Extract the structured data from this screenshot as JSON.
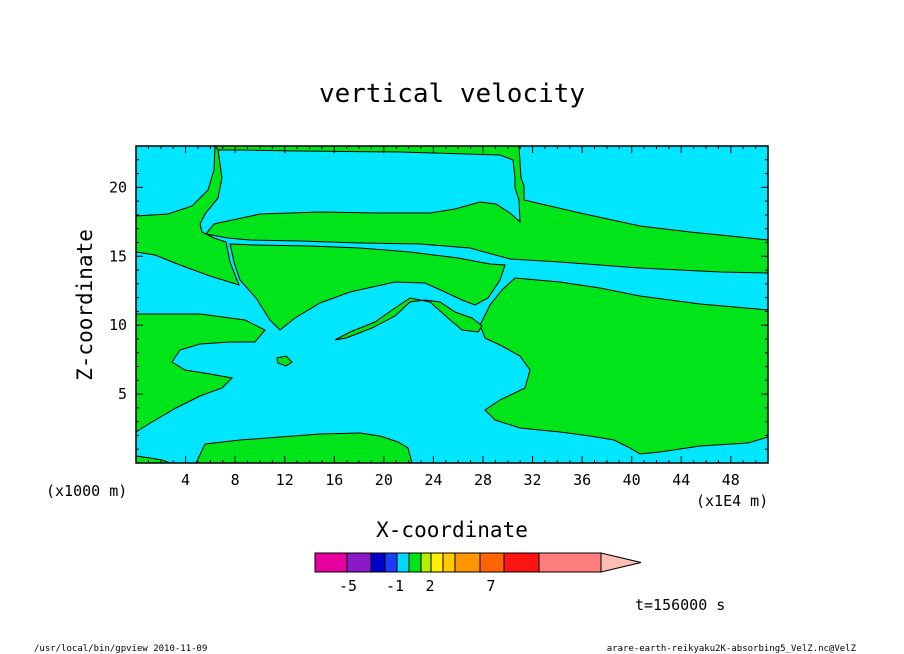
{
  "chart_data": {
    "type": "contour",
    "title": "vertical velocity",
    "xlabel": "X-coordinate",
    "ylabel": "Z-coordinate",
    "x_scale_note": "(x1E4 m)",
    "y_scale_note": "(x1000 m)",
    "x_ticks": [
      "4",
      "8",
      "12",
      "16",
      "20",
      "24",
      "28",
      "32",
      "36",
      "40",
      "44",
      "48"
    ],
    "y_ticks": [
      "5",
      "10",
      "15",
      "20"
    ],
    "xlim": [
      0,
      51
    ],
    "ylim": [
      0,
      23
    ],
    "fill_colors": {
      "positive": "#00e51a",
      "negative": "#00e6ff",
      "contour_line": "#000000"
    },
    "colorbar": {
      "labels": [
        "-5",
        "-1",
        "2",
        "7"
      ],
      "colors": [
        "#e6009d",
        "#8a19c8",
        "#0000c8",
        "#1a3cff",
        "#00d8ff",
        "#00e51a",
        "#b4f000",
        "#ffee00",
        "#ffc800",
        "#ff9600",
        "#ff6400",
        "#ff1414",
        "#ff7d7d",
        "#ffbeb4"
      ]
    },
    "time_label": "t=156000 s",
    "footer_left": "/usr/local/bin/gpview  2010-11-09",
    "footer_right": "arare-earth-reikyaku2K-absorbing5_VelZ.nc@VelZ"
  }
}
